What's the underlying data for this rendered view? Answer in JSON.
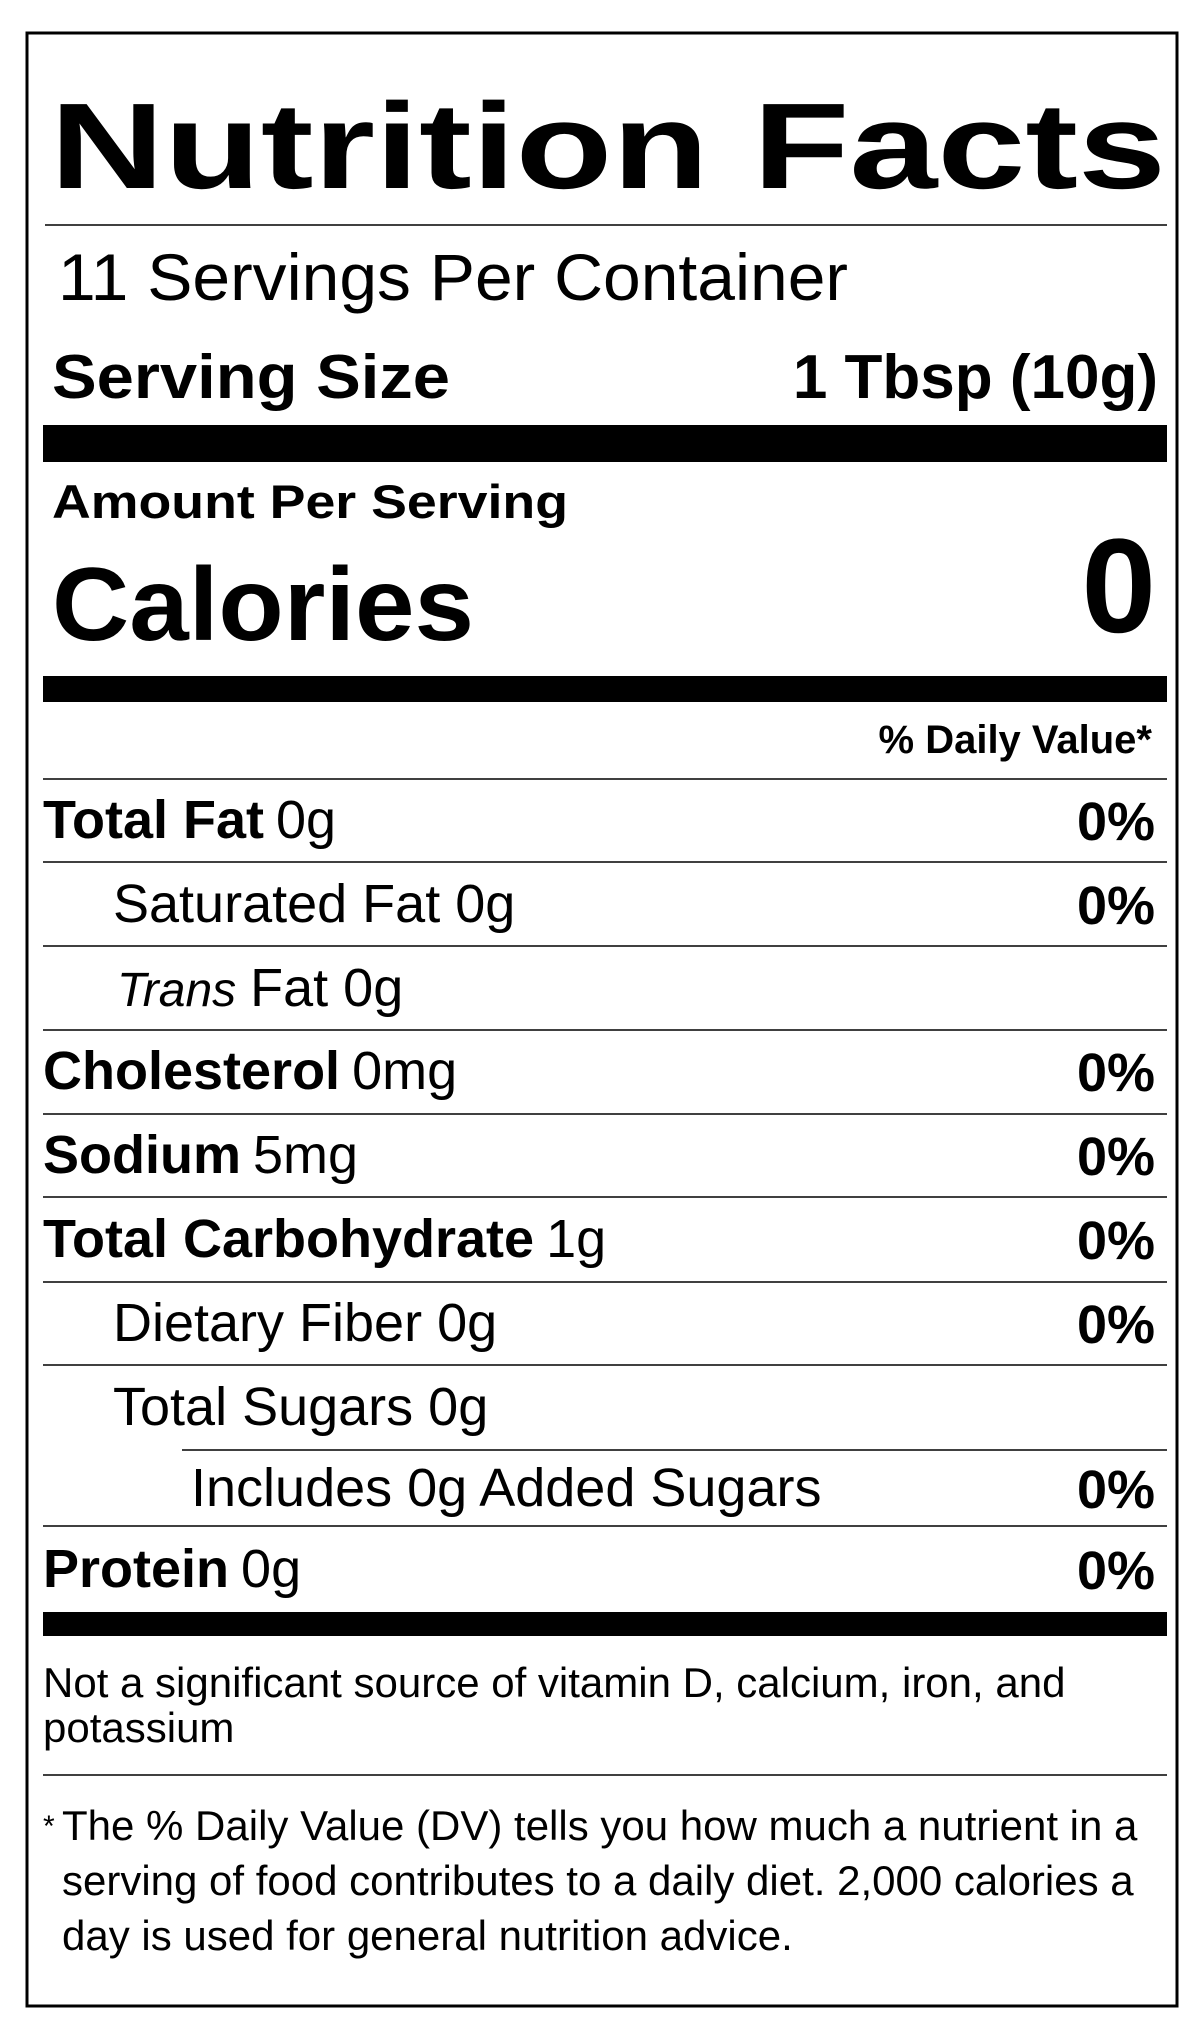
{
  "label": {
    "title": "Nutrition Facts",
    "servings_per_container": "11 Servings Per Container",
    "serving_size": {
      "label": "Serving Size",
      "value": "1 Tbsp (10g)"
    },
    "amount_per_serving": "Amount Per Serving",
    "calories": {
      "label": "Calories",
      "value": "0"
    },
    "daily_value_header": "% Daily Value*",
    "rows": [
      {
        "name": "Total Fat",
        "amount": "0g",
        "dv": "0%"
      },
      {
        "name": "Saturated Fat 0g",
        "dv": "0%"
      },
      {
        "name_italic": "Trans",
        "name": "Fat 0g"
      },
      {
        "name": "Cholesterol",
        "amount": "0mg",
        "dv": "0%"
      },
      {
        "name": "Sodium",
        "amount": "5mg",
        "dv": "0%"
      },
      {
        "name": "Total Carbohydrate",
        "amount": "1g",
        "dv": "0%"
      },
      {
        "name": "Dietary Fiber 0g",
        "dv": "0%"
      },
      {
        "name": "Total Sugars 0g"
      },
      {
        "name": "Includes 0g Added Sugars",
        "dv": "0%"
      },
      {
        "name": "Protein",
        "amount": "0g",
        "dv": "0%"
      }
    ],
    "vitamin_note": [
      "Not a significant source of vitamin D, calcium, iron, and",
      "potassium"
    ],
    "dv_note": {
      "marker": "*",
      "lines": [
        "The % Daily Value (DV) tells you how much a nutrient in a",
        "serving of food contributes to a daily diet. 2,000 calories a",
        "day is used for general nutrition advice."
      ]
    }
  }
}
